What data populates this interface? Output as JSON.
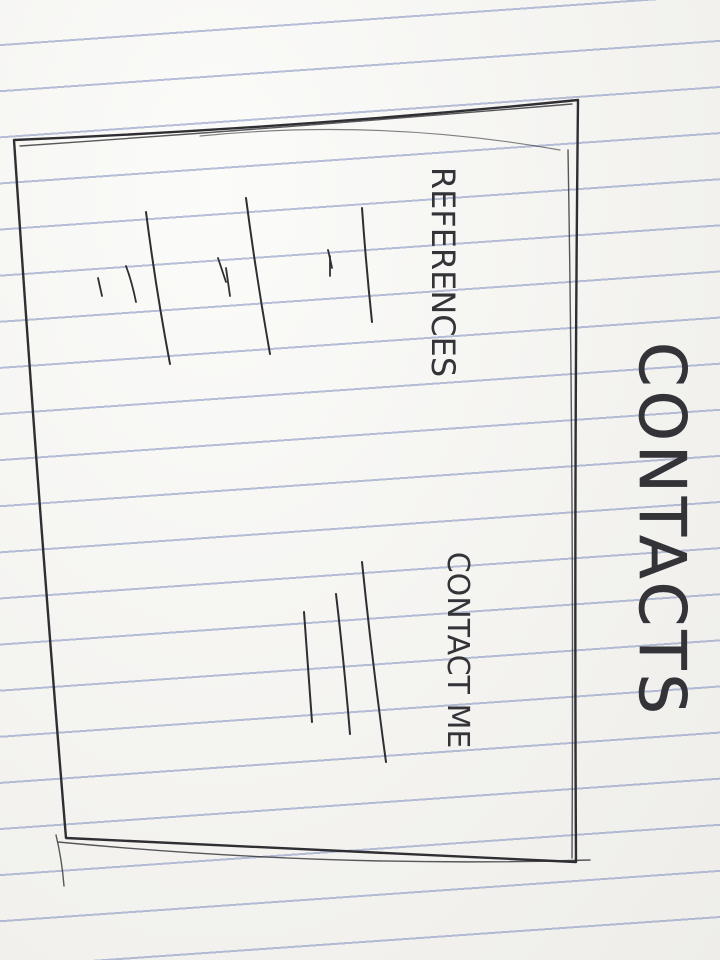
{
  "sketch": {
    "title": "CONTACTS",
    "left_section": {
      "heading": "REFERENCES",
      "entries": [
        {
          "placeholder": "reference-entry-1"
        },
        {
          "placeholder": "reference-entry-2"
        },
        {
          "placeholder": "reference-entry-3"
        }
      ]
    },
    "right_section": {
      "heading": "CONTACT ME",
      "placeholder": "contact-details"
    }
  },
  "colors": {
    "paper": "#f6f5f2",
    "ruled_line": "#7e8cbe",
    "pencil": "#2f2f33"
  }
}
